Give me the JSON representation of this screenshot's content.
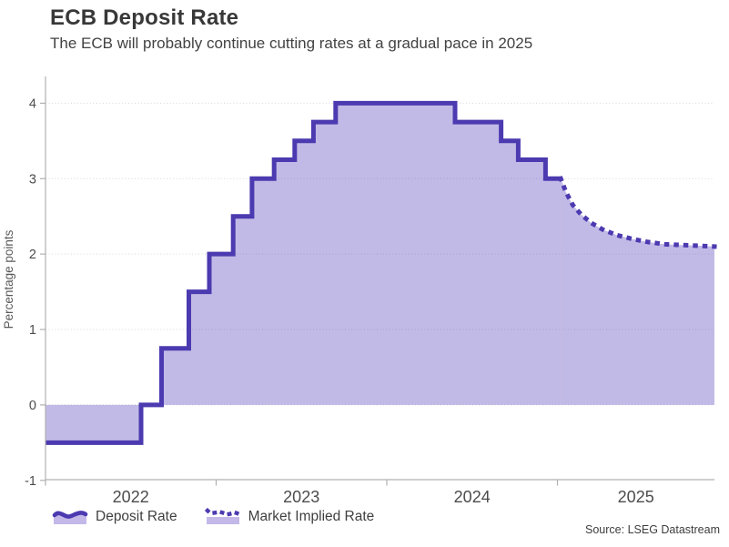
{
  "header": {
    "title": "ECB Deposit Rate",
    "subtitle": "The ECB will probably continue cutting rates at a gradual pace in 2025"
  },
  "source_note": "Source: LSEG Datastream",
  "legend": {
    "items": [
      {
        "label": "Deposit Rate",
        "style": "solid"
      },
      {
        "label": "Market Implied Rate",
        "style": "dotted"
      }
    ]
  },
  "colors": {
    "line": "#4b3ab0",
    "area_fill": "rgba(77,54,183,0.34)",
    "legend_fill": "#c3b8e8",
    "grid": "#d8d8d8",
    "axis": "#b0b0b0",
    "title_text": "#383838",
    "subtitle_text": "#424242",
    "tick_text": "#4c4c4c",
    "axis_label_text": "#5a5a5a",
    "source_text": "#3d3d3d"
  },
  "chart_data": {
    "type": "area",
    "title": "ECB Deposit Rate",
    "subtitle": "The ECB will probably continue cutting rates at a gradual pace in 2025",
    "xlabel": "",
    "ylabel": "Percentage points",
    "xlim": [
      2022.0,
      2025.92
    ],
    "ylim": [
      -0.99,
      4.33
    ],
    "yticks": [
      -1,
      0,
      1,
      2,
      3,
      4
    ],
    "ygridlines": [
      0,
      1,
      2,
      3,
      4
    ],
    "x_tick_marks": [
      2022,
      2023,
      2024,
      2025
    ],
    "x_period_labels": [
      {
        "label": "2022",
        "from": 2022.0,
        "to": 2023.0
      },
      {
        "label": "2023",
        "from": 2023.0,
        "to": 2024.0
      },
      {
        "label": "2024",
        "from": 2024.0,
        "to": 2025.0
      },
      {
        "label": "2025",
        "from": 2025.0,
        "to": 2025.92
      }
    ],
    "baseline": 0,
    "grid": "dotted-horizontal",
    "legend_position": "bottom",
    "series": [
      {
        "name": "Deposit Rate",
        "type": "step-area",
        "line_style": "solid",
        "points": [
          [
            2022.0,
            -0.5
          ],
          [
            2022.56,
            0.0
          ],
          [
            2022.68,
            0.75
          ],
          [
            2022.84,
            1.5
          ],
          [
            2022.96,
            2.0
          ],
          [
            2023.1,
            2.5
          ],
          [
            2023.21,
            3.0
          ],
          [
            2023.34,
            3.25
          ],
          [
            2023.46,
            3.5
          ],
          [
            2023.57,
            3.75
          ],
          [
            2023.7,
            4.0
          ],
          [
            2024.4,
            3.75
          ],
          [
            2024.67,
            3.5
          ],
          [
            2024.77,
            3.25
          ],
          [
            2024.93,
            3.0
          ],
          [
            2025.02,
            3.0
          ]
        ]
      },
      {
        "name": "Market Implied Rate",
        "type": "line-area",
        "line_style": "dotted",
        "points": [
          [
            2025.02,
            3.0
          ],
          [
            2025.05,
            2.82
          ],
          [
            2025.09,
            2.65
          ],
          [
            2025.14,
            2.52
          ],
          [
            2025.2,
            2.41
          ],
          [
            2025.27,
            2.32
          ],
          [
            2025.35,
            2.25
          ],
          [
            2025.44,
            2.2
          ],
          [
            2025.53,
            2.16
          ],
          [
            2025.63,
            2.13
          ],
          [
            2025.73,
            2.12
          ],
          [
            2025.83,
            2.11
          ],
          [
            2025.92,
            2.1
          ]
        ]
      }
    ]
  }
}
